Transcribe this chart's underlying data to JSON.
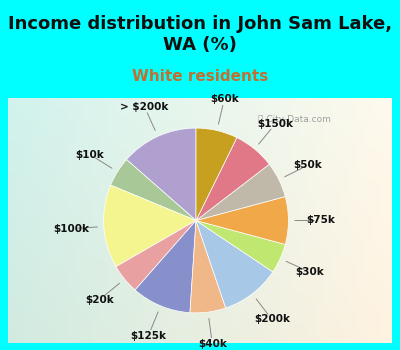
{
  "title": "Income distribution in John Sam Lake,\nWA (%)",
  "subtitle": "White residents",
  "bg_top": "#00FFFF",
  "labels": [
    "> $200k",
    "$10k",
    "$100k",
    "$20k",
    "$125k",
    "$40k",
    "$200k",
    "$30k",
    "$75k",
    "$50k",
    "$150k",
    "$60k"
  ],
  "values": [
    13,
    5,
    14,
    5,
    10,
    6,
    10,
    5,
    8,
    6,
    7,
    7
  ],
  "colors": [
    "#b0a0d0",
    "#a8c898",
    "#f5f590",
    "#e8a0a0",
    "#8890cc",
    "#f0b888",
    "#a8c8e8",
    "#c0e870",
    "#f0a848",
    "#c0b8a8",
    "#e07888",
    "#c8a020"
  ],
  "title_fontsize": 13,
  "subtitle_fontsize": 11,
  "subtitle_color": "#c07030",
  "label_fontsize": 7.5
}
